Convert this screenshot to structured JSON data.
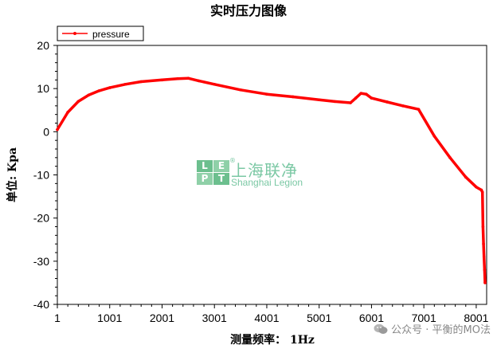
{
  "chart_data": {
    "type": "line",
    "title": "实时压力图像",
    "xlabel": "测量频率：  1Hz",
    "ylabel": "单位: Kpa",
    "xlim": [
      1,
      8200
    ],
    "ylim": [
      -40,
      20
    ],
    "xticks": [
      1,
      1001,
      2001,
      3001,
      4001,
      5001,
      6001,
      7001,
      8001
    ],
    "yticks": [
      20,
      10,
      0,
      -10,
      -20,
      -30,
      -40
    ],
    "grid": false,
    "legend_position": "top-left",
    "series": [
      {
        "name": "pressure",
        "color": "#ff0000",
        "x": [
          1,
          200,
          400,
          600,
          800,
          1001,
          1300,
          1600,
          2001,
          2300,
          2500,
          2700,
          3001,
          3500,
          4001,
          4500,
          5001,
          5300,
          5600,
          5700,
          5800,
          5900,
          6001,
          6300,
          6600,
          6900,
          7200,
          7500,
          7800,
          8000,
          8100,
          8120,
          8130,
          8140,
          8150,
          8160,
          8170
        ],
        "values": [
          0.5,
          4.5,
          7.0,
          8.5,
          9.5,
          10.2,
          11.0,
          11.6,
          12.0,
          12.3,
          12.4,
          11.8,
          11.0,
          9.7,
          8.7,
          8.1,
          7.4,
          7.0,
          6.7,
          7.8,
          8.9,
          8.7,
          7.8,
          6.9,
          6.0,
          5.2,
          -1.0,
          -6.0,
          -10.5,
          -12.8,
          -13.5,
          -14.0,
          -22.0,
          -26.0,
          -29.0,
          -32.0,
          -35.0
        ]
      }
    ]
  },
  "watermark": {
    "logo_letters": [
      "L",
      "E",
      "P",
      "T"
    ],
    "logo_colors": [
      "#6cbf8e",
      "#8fd0a8",
      "#8fd0a8",
      "#6cbf8e"
    ],
    "cn_text": "上海联净",
    "en_text": "Shanghai Legion",
    "reg_mark": "®"
  },
  "footer": {
    "text": "公众号 · 平衡的MO法"
  }
}
